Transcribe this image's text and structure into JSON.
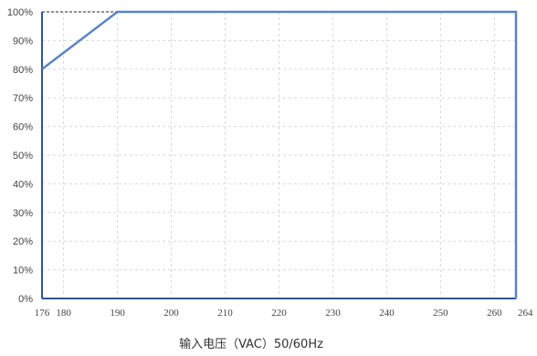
{
  "chart_data": {
    "type": "line",
    "title": "",
    "xlabel": "输入电压（VAC）50/60Hz",
    "ylabel": "",
    "x_ticks": [
      "176",
      "180",
      "190",
      "200",
      "210",
      "220",
      "230",
      "240",
      "250",
      "260",
      "264"
    ],
    "x_tick_values": [
      176,
      180,
      190,
      200,
      210,
      220,
      230,
      240,
      250,
      260,
      264
    ],
    "y_ticks": [
      "0%",
      "10%",
      "20%",
      "30%",
      "40%",
      "50%",
      "60%",
      "70%",
      "80%",
      "90%",
      "100%"
    ],
    "y_tick_values": [
      0,
      10,
      20,
      30,
      40,
      50,
      60,
      70,
      80,
      90,
      100
    ],
    "xlim": [
      176,
      264
    ],
    "ylim": [
      0,
      100
    ],
    "grid": true,
    "series": [
      {
        "x": [
          176,
          190,
          264,
          264
        ],
        "y": [
          80,
          100,
          100,
          0
        ]
      }
    ],
    "reference_line": {
      "x": [
        176,
        190
      ],
      "y": [
        100,
        100
      ],
      "style": "dashed"
    },
    "colors": {
      "line": "#5b84c4",
      "axis": "#2f5597",
      "grid": "#d9d9d9",
      "reference": "#222222"
    }
  }
}
